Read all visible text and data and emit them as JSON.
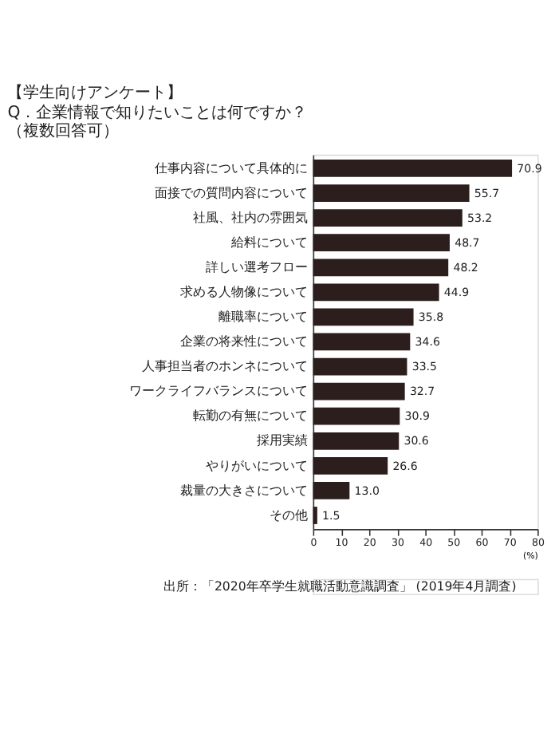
{
  "chart_data": {
    "type": "bar",
    "orientation": "horizontal",
    "title": "【学生向けアンケート】",
    "subtitle": "Q．企業情報で知りたいことは何ですか？（複数回答可）",
    "categories": [
      "仕事内容について具体的に",
      "面接での質問内容について",
      "社風、社内の雰囲気",
      "給料について",
      "詳しい選考フロー",
      "求める人物像について",
      "離職率について",
      "企業の将来性について",
      "人事担当者のホンネについて",
      "ワークライフバランスについて",
      "転勤の有無について",
      "採用実績",
      "やりがいについて",
      "裁量の大きさについて",
      "その他"
    ],
    "values": [
      70.9,
      55.7,
      53.2,
      48.7,
      48.2,
      44.9,
      35.8,
      34.6,
      33.5,
      32.7,
      30.9,
      30.6,
      26.6,
      13.0,
      1.5
    ],
    "value_labels": [
      "70.9",
      "55.7",
      "53.2",
      "48.7",
      "48.2",
      "44.9",
      "35.8",
      "34.6",
      "33.5",
      "32.7",
      "30.9",
      "30.6",
      "26.6",
      "13.0",
      "1.5"
    ],
    "color": "#2b1e1c",
    "xlim": [
      0,
      80
    ],
    "xticks": [
      0,
      10,
      20,
      30,
      40,
      50,
      60,
      70,
      80
    ],
    "xlabel": "(%)",
    "grid": false,
    "annotations": [
      "出所：「2020年卒学生就職活動意識調査」 (2019年4月調査)"
    ]
  }
}
